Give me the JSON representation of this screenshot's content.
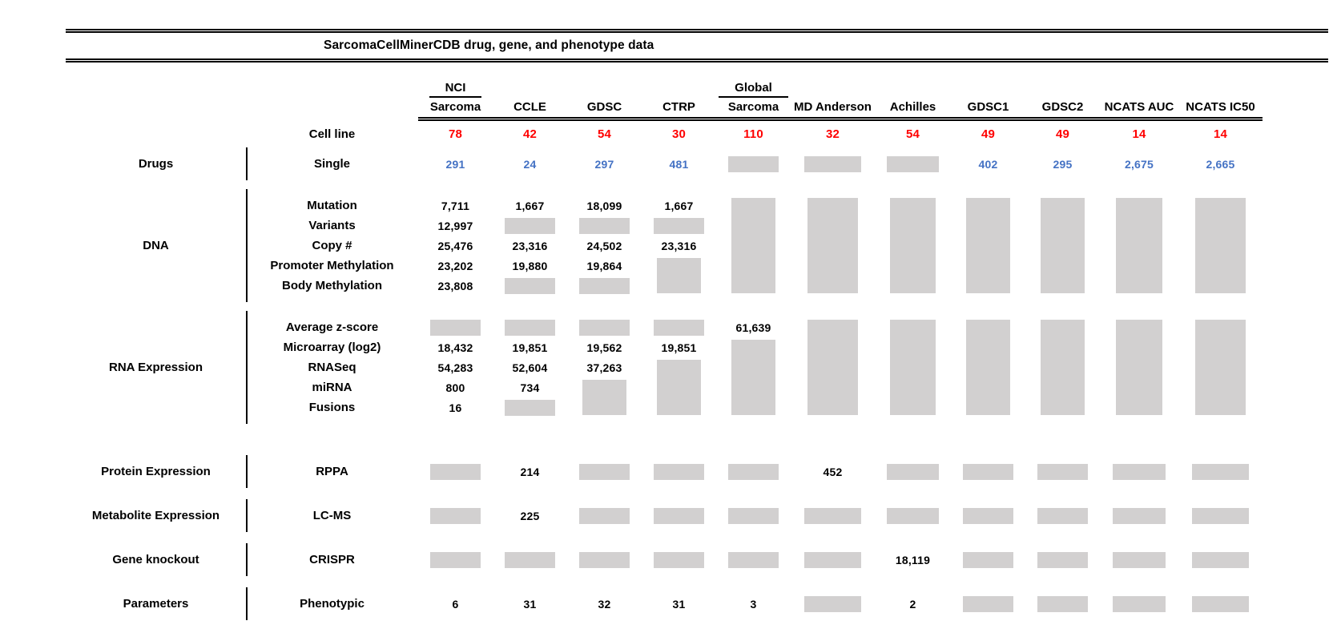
{
  "colors": {
    "cell_line_red": "#FF0000",
    "drug_blue": "#4472C4",
    "missing_gray": "#D2D0D0"
  },
  "chart_data": {
    "type": "table",
    "title": "SarcomaCellMinerCDB drug, gene, and phenotype data",
    "columns": [
      {
        "top": "NCI",
        "label": "Sarcoma",
        "underline_top": true
      },
      {
        "top": "",
        "label": "CCLE",
        "underline_top": false
      },
      {
        "top": "",
        "label": "GDSC",
        "underline_top": false
      },
      {
        "top": "",
        "label": "CTRP",
        "underline_top": false
      },
      {
        "top": "Global",
        "label": "Sarcoma",
        "underline_top": true
      },
      {
        "top": "",
        "label": "MD Anderson",
        "underline_top": false
      },
      {
        "top": "",
        "label": "Achilles",
        "underline_top": false
      },
      {
        "top": "",
        "label": "GDSC1",
        "underline_top": false
      },
      {
        "top": "",
        "label": "GDSC2",
        "underline_top": false
      },
      {
        "top": "",
        "label": "NCATS AUC",
        "underline_top": false
      },
      {
        "top": "",
        "label": "NCATS IC50",
        "underline_top": false
      }
    ],
    "cell_line_row": {
      "label": "Cell line",
      "values": [
        "78",
        "42",
        "54",
        "30",
        "110",
        "32",
        "54",
        "49",
        "49",
        "14",
        "14"
      ]
    },
    "sections": [
      {
        "category": "Drugs",
        "value_color": "blue",
        "rows": [
          {
            "label": "Single",
            "cells": [
              "291",
              "24",
              "297",
              "481",
              null,
              null,
              null,
              "402",
              "295",
              "2,675",
              "2,665"
            ]
          }
        ]
      },
      {
        "category": "DNA",
        "rows": [
          {
            "label": "Mutation",
            "cells": [
              "7,711",
              "1,667",
              "18,099",
              "1,667",
              null,
              null,
              null,
              null,
              null,
              null,
              null
            ]
          },
          {
            "label": "Variants",
            "cells": [
              "12,997",
              null,
              null,
              null,
              null,
              null,
              null,
              null,
              null,
              null,
              null
            ]
          },
          {
            "label": "Copy #",
            "cells": [
              "25,476",
              "23,316",
              "24,502",
              "23,316",
              null,
              null,
              null,
              null,
              null,
              null,
              null
            ]
          },
          {
            "label": "Promoter Methylation",
            "cells": [
              "23,202",
              "19,880",
              "19,864",
              null,
              null,
              null,
              null,
              null,
              null,
              null,
              null
            ]
          },
          {
            "label": "Body Methylation",
            "cells": [
              "23,808",
              null,
              null,
              null,
              null,
              null,
              null,
              null,
              null,
              null,
              null
            ]
          }
        ]
      },
      {
        "category": "RNA Expression",
        "rows": [
          {
            "label": "Average z-score",
            "cells": [
              null,
              null,
              null,
              null,
              "61,639",
              null,
              null,
              null,
              null,
              null,
              null
            ]
          },
          {
            "label": "Microarray (log2)",
            "cells": [
              "18,432",
              "19,851",
              "19,562",
              "19,851",
              null,
              null,
              null,
              null,
              null,
              null,
              null
            ]
          },
          {
            "label": "RNASeq",
            "cells": [
              "54,283",
              "52,604",
              "37,263",
              null,
              null,
              null,
              null,
              null,
              null,
              null,
              null
            ]
          },
          {
            "label": "miRNA",
            "cells": [
              "800",
              "734",
              null,
              null,
              null,
              null,
              null,
              null,
              null,
              null,
              null
            ]
          },
          {
            "label": "Fusions",
            "cells": [
              "16",
              null,
              null,
              null,
              null,
              null,
              null,
              null,
              null,
              null,
              null
            ]
          }
        ]
      },
      {
        "category": "Protein Expression",
        "rows": [
          {
            "label": "RPPA",
            "cells": [
              null,
              "214",
              null,
              null,
              null,
              "452",
              null,
              null,
              null,
              null,
              null
            ]
          }
        ]
      },
      {
        "category": "Metabolite Expression",
        "rows": [
          {
            "label": "LC-MS",
            "cells": [
              null,
              "225",
              null,
              null,
              null,
              null,
              null,
              null,
              null,
              null,
              null
            ]
          }
        ]
      },
      {
        "category": "Gene knockout",
        "rows": [
          {
            "label": "CRISPR",
            "cells": [
              null,
              null,
              null,
              null,
              null,
              null,
              "18,119",
              null,
              null,
              null,
              null
            ]
          }
        ]
      },
      {
        "category": "Parameters",
        "rows": [
          {
            "label": "Phenotypic",
            "cells": [
              "6",
              "31",
              "32",
              "31",
              "3",
              null,
              "2",
              null,
              null,
              null,
              null
            ]
          }
        ]
      }
    ]
  }
}
